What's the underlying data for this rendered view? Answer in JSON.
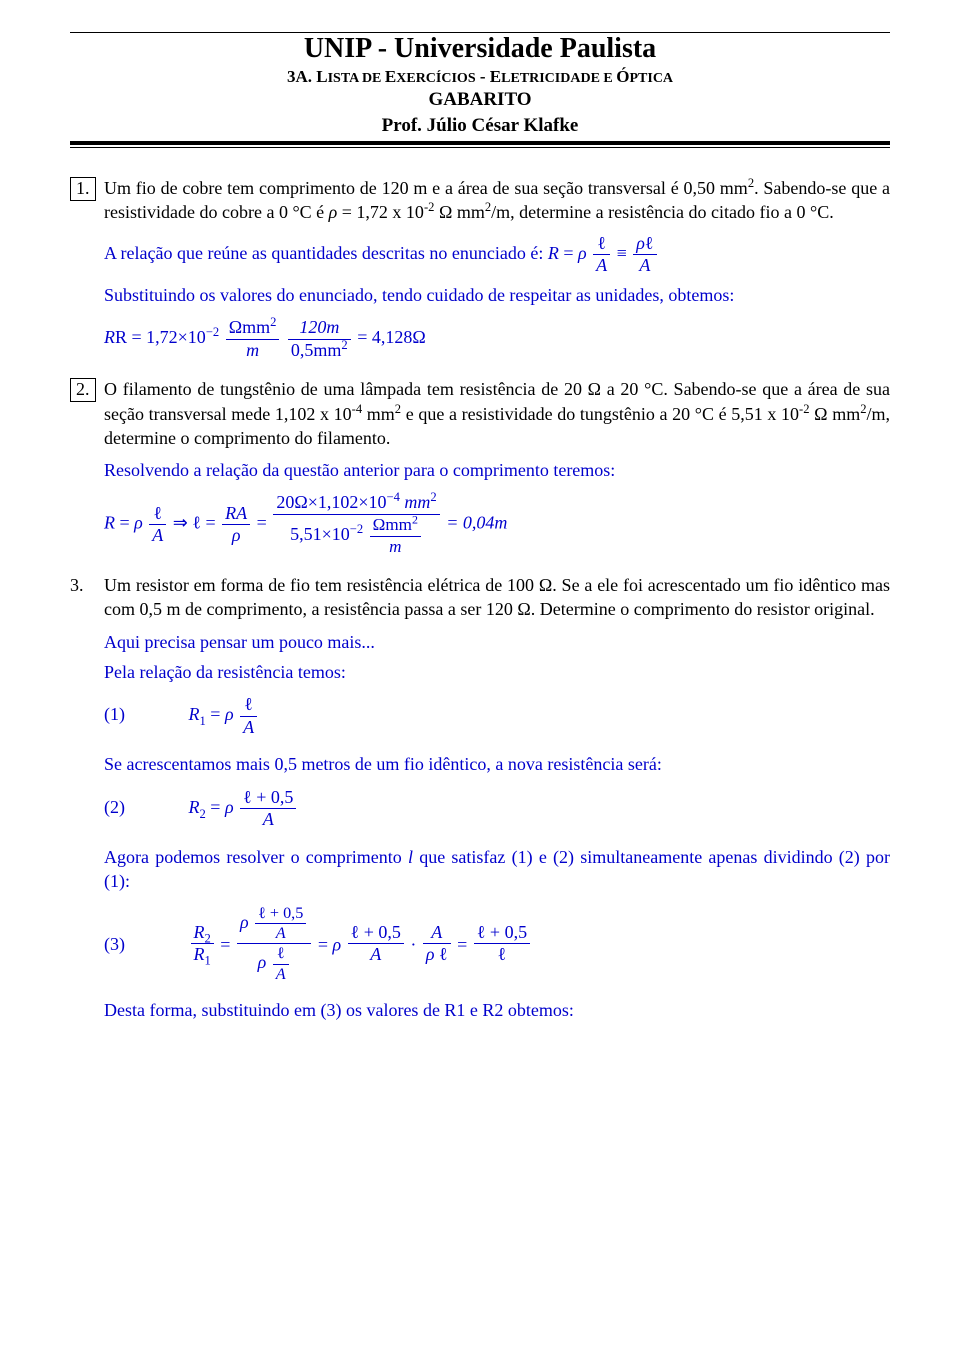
{
  "header": {
    "university": "UNIP - Universidade Paulista",
    "list_title_pre": "3A. L",
    "list_title_sc": "ISTA DE ",
    "list_title_ex": "E",
    "list_title_sc2": "XERCÍCIOS",
    "list_title_dash": " - E",
    "list_title_sc3": "LETRICIDADE E ",
    "list_title_op": "Ó",
    "list_title_sc4": "PTICA",
    "gabarito": "GABARITO",
    "prof": "Prof. Júlio César Klafke"
  },
  "colors": {
    "text": "#000000",
    "answer": "#0000cc",
    "background": "#ffffff"
  },
  "q1": {
    "num": "1.",
    "text_a": "Um fio de cobre tem comprimento de 120 m e a área de sua seção transversal é 0,50 mm",
    "text_b": ". Sabendo-se que a resistividade do cobre a 0 °C é ",
    "text_c": " = 1,72 x 10",
    "text_d": " Ω mm",
    "text_e": "/m, determine a resistência do citado fio a 0 °C.",
    "ans1": "A relação que reúne as quantidades descritas no enunciado é: ",
    "ans2": "Substituindo os valores do enunciado, tendo cuidado de respeitar as unidades, obtemos:",
    "eq1_lhs": "R = 1,72×10",
    "eq1_unit1_num": "Ωmm",
    "eq1_unit1_den": "m",
    "eq1_frac2_num": "120m",
    "eq1_frac2_den": "0,5mm",
    "eq1_result": " = 4,128Ω"
  },
  "q2": {
    "num": "2.",
    "text_a": "O filamento de tungstênio de uma lâmpada tem resistência de 20 Ω a 20 °C. Sabendo-se que a área de sua seção transversal mede 1,102 x 10",
    "text_b": " mm",
    "text_c": " e que a resistividade do tungstênio a 20 °C é 5,51 x 10",
    "text_d": " Ω mm",
    "text_e": "/m, determine o comprimento do filamento.",
    "ans1": "Resolvendo a relação da questão anterior para o comprimento teremos:",
    "eq_ra_num": "RA",
    "eq_big_num": "20Ω×1,102×10",
    "eq_big_num2": "mm",
    "eq_big_den1": "5,51×10",
    "eq_big_den2": "Ωmm",
    "eq_big_den3": "m",
    "eq_result": " = 0,04m"
  },
  "q3": {
    "num": "3.",
    "text": "Um resistor em forma de fio tem resistência elétrica de 100 Ω. Se a ele foi acrescentado um fio idêntico mas com 0,5 m de comprimento, a resistência passa a ser 120 Ω. Determine o comprimento do resistor original.",
    "ans1": "Aqui precisa pensar um pouco mais...",
    "ans2": "Pela relação da resistência temos:",
    "lbl1": "(1)",
    "ans3": "Se acrescentamos mais 0,5 metros de um fio idêntico, a nova resistência será:",
    "lbl2": "(2)",
    "ans4_a": "Agora podemos resolver o comprimento ",
    "ans4_b": " que satisfaz (1) e (2) simultaneamente apenas dividindo (2) por (1):",
    "lbl3": "(3)",
    "ans5": "Desta forma, substituindo em (3) os valores de R1 e R2 obtemos:"
  }
}
